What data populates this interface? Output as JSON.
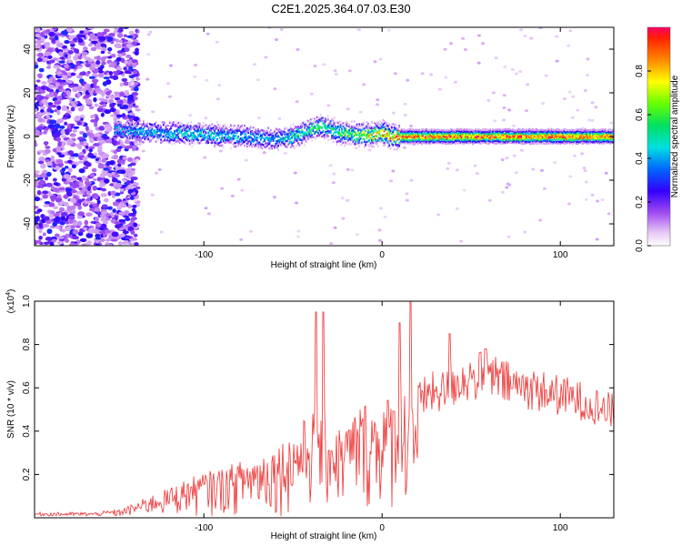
{
  "title": "C2E1.2025.364.07.03.E30",
  "chart_data": [
    {
      "type": "heatmap",
      "title": "C2E1.2025.364.07.03.E30",
      "xlabel": "Height of straight line (km)",
      "ylabel": "Frequency (Hz)",
      "xlim": [
        -195,
        130
      ],
      "ylim": [
        -50,
        50
      ],
      "x_ticks": [
        -100,
        0,
        100
      ],
      "x_tick_labels": [
        "-100",
        "0",
        "100"
      ],
      "y_ticks": [
        -40,
        -20,
        0,
        20,
        40
      ],
      "y_tick_labels": [
        "-40",
        "-20",
        "0",
        "20",
        "40"
      ],
      "colorbar": {
        "label": "Normalized spectral amplitude",
        "range": [
          0,
          1
        ],
        "ticks": [
          0.0,
          0.2,
          0.4,
          0.6,
          0.8
        ],
        "tick_labels": [
          "0.0",
          "0.2",
          "0.4",
          "0.6",
          "0.8"
        ]
      },
      "noise_region_end_km": -145,
      "signal_ridge": {
        "x": [
          -148,
          -130,
          -110,
          -90,
          -75,
          -60,
          -50,
          -40,
          -35,
          -30,
          -25,
          -15,
          -5,
          0,
          5,
          10,
          30,
          60,
          90,
          130
        ],
        "freq_hz": [
          3,
          2,
          1.5,
          0.5,
          0,
          -1,
          0,
          3,
          5,
          4,
          2,
          1,
          1,
          2,
          0,
          0,
          0,
          0,
          0,
          0
        ],
        "peak_amplitude": [
          0.45,
          0.45,
          0.5,
          0.5,
          0.45,
          0.45,
          0.55,
          0.6,
          0.6,
          0.55,
          0.6,
          0.7,
          0.8,
          0.85,
          0.9,
          0.95,
          0.95,
          0.95,
          0.95,
          0.95
        ]
      }
    },
    {
      "type": "line",
      "xlabel": "Height of straight line (km)",
      "ylabel": "SNR (10 * v/v)",
      "y_multiplier": "(x10",
      "y_multiplier_exp": "4",
      "y_multiplier_close": ")",
      "xlim": [
        -195,
        130
      ],
      "ylim": [
        0,
        1.0
      ],
      "x_ticks": [
        -100,
        0,
        100
      ],
      "x_tick_labels": [
        "-100",
        "0",
        "100"
      ],
      "y_ticks": [
        0.2,
        0.4,
        0.6,
        0.8,
        1.0
      ],
      "y_tick_labels": [
        "0.2",
        "0.4",
        "0.6",
        "0.8",
        "1.0"
      ],
      "series": [
        {
          "name": "SNR",
          "color": "#ee3333",
          "envelope_x": [
            -195,
            -160,
            -150,
            -140,
            -130,
            -120,
            -110,
            -100,
            -90,
            -80,
            -70,
            -60,
            -50,
            -45,
            -40,
            -35,
            -30,
            -25,
            -20,
            -15,
            -10,
            -5,
            0,
            5,
            10,
            15,
            20,
            25,
            30,
            35,
            40,
            45,
            50,
            55,
            60,
            70,
            80,
            90,
            100,
            110,
            120,
            130
          ],
          "envelope_y": [
            0.02,
            0.02,
            0.03,
            0.06,
            0.1,
            0.13,
            0.17,
            0.2,
            0.22,
            0.25,
            0.28,
            0.32,
            0.38,
            0.42,
            0.48,
            0.5,
            0.45,
            0.4,
            0.42,
            0.48,
            0.52,
            0.5,
            0.52,
            0.55,
            0.58,
            0.6,
            0.58,
            0.6,
            0.62,
            0.62,
            0.65,
            0.68,
            0.68,
            0.7,
            0.7,
            0.66,
            0.64,
            0.62,
            0.6,
            0.58,
            0.55,
            0.52
          ],
          "peaks": [
            {
              "x": -37,
              "y": 0.95
            },
            {
              "x": -33,
              "y": 0.95
            },
            {
              "x": 10,
              "y": 0.9
            },
            {
              "x": 16,
              "y": 1.0
            },
            {
              "x": 38,
              "y": 0.85
            },
            {
              "x": 58,
              "y": 0.78
            }
          ]
        }
      ]
    }
  ]
}
